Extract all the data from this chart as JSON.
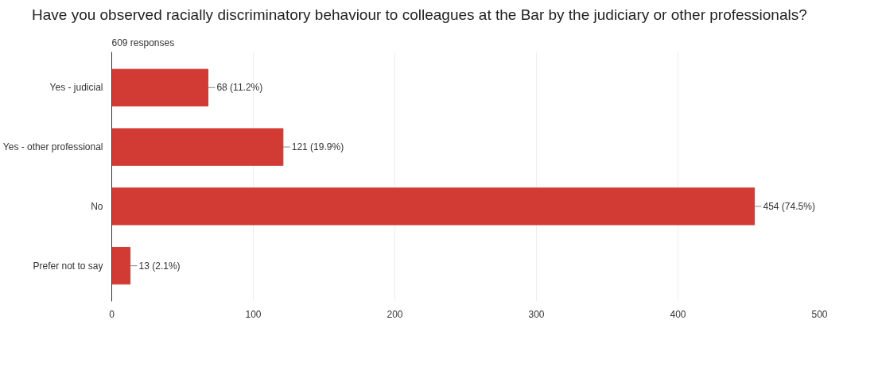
{
  "chart_data": {
    "type": "bar",
    "orientation": "horizontal",
    "title": "Have you observed racially discriminatory behaviour to colleagues at the Bar by the judiciary or other professionals?",
    "subtitle": "609 responses",
    "categories": [
      "Yes - judicial",
      "Yes - other professional",
      "No",
      "Prefer not to say"
    ],
    "values": [
      68,
      121,
      454,
      13
    ],
    "value_labels": [
      "68 (11.2%)",
      "121 (19.9%)",
      "454 (74.5%)",
      "13 (2.1%)"
    ],
    "color": "#d23b33",
    "xlim": [
      0,
      500
    ],
    "xticks": [
      0,
      100,
      200,
      300,
      400,
      500
    ],
    "grid": "x"
  }
}
